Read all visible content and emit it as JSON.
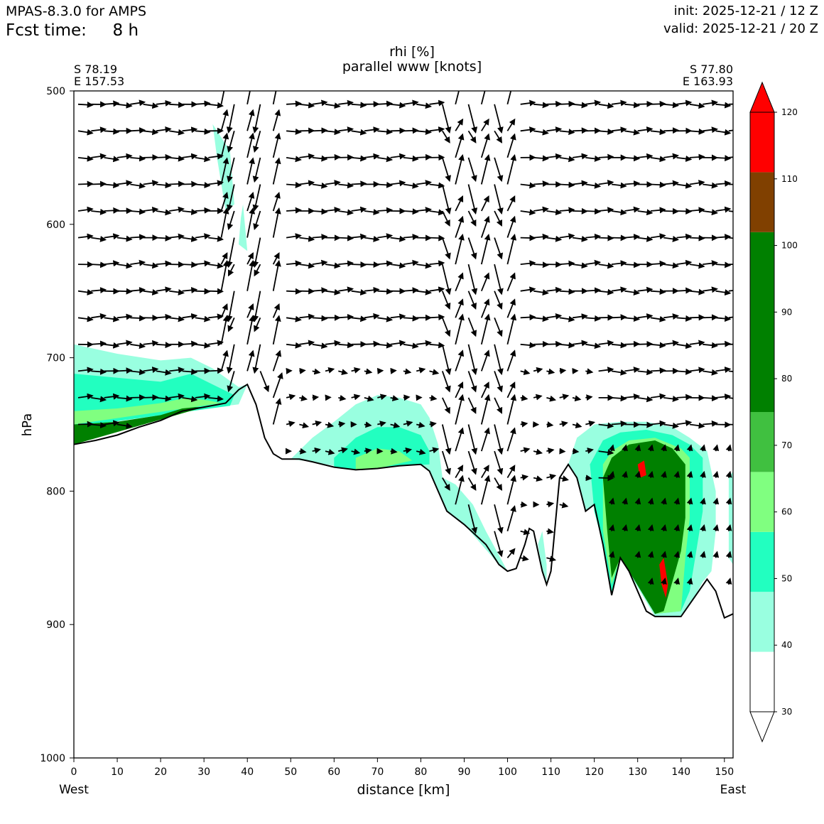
{
  "header": {
    "model": "MPAS-8.3.0 for AMPS",
    "fcst_label": "Fcst time:",
    "fcst_value": "8 h",
    "init": "init: 2025-12-21 / 12 Z",
    "valid": "valid: 2025-12-21 / 20 Z"
  },
  "chart_data": {
    "type": "cross-section",
    "title": "rhi [%]",
    "subtitle": "parallel www [knots]",
    "xlabel": "distance [km]",
    "ylabel": "hPa",
    "xlim": [
      0,
      152
    ],
    "ylim": [
      1000,
      500
    ],
    "xticks": [
      0,
      10,
      20,
      30,
      40,
      50,
      60,
      70,
      80,
      90,
      100,
      110,
      120,
      130,
      140,
      150
    ],
    "yticks": [
      500,
      600,
      700,
      800,
      900,
      1000
    ],
    "left_label": "West",
    "right_label": "East",
    "start_point": [
      "S 78.19",
      "E 157.53"
    ],
    "end_point": [
      "S 77.80",
      "E 163.93"
    ],
    "colorbar": {
      "levels": [
        30,
        40,
        50,
        60,
        70,
        80,
        90,
        100,
        110,
        120
      ],
      "tick_labels": [
        "30",
        "40",
        "50",
        "60",
        "70",
        "80",
        "90",
        "100",
        "110",
        "120"
      ],
      "bands": [
        {
          "from": 30,
          "to": 39,
          "color": "#ffffff"
        },
        {
          "from": 39,
          "to": 48,
          "color": "#99ffe0"
        },
        {
          "from": 48,
          "to": 57,
          "color": "#22ffc0"
        },
        {
          "from": 57,
          "to": 66,
          "color": "#80ff80"
        },
        {
          "from": 66,
          "to": 75,
          "color": "#40c040"
        },
        {
          "from": 75,
          "to": 102,
          "color": "#008000"
        },
        {
          "from": 102,
          "to": 111,
          "color": "#804000"
        },
        {
          "from": 111,
          "to": 120,
          "color": "#ff0000"
        }
      ]
    },
    "terrain_pressure": [
      [
        0,
        765
      ],
      [
        5,
        762
      ],
      [
        10,
        758
      ],
      [
        15,
        752
      ],
      [
        20,
        747
      ],
      [
        25,
        740
      ],
      [
        30,
        737
      ],
      [
        35,
        734
      ],
      [
        38,
        724
      ],
      [
        40,
        720
      ],
      [
        42,
        735
      ],
      [
        44,
        760
      ],
      [
        46,
        772
      ],
      [
        48,
        776
      ],
      [
        52,
        776
      ],
      [
        55,
        778
      ],
      [
        60,
        782
      ],
      [
        65,
        784
      ],
      [
        70,
        783
      ],
      [
        75,
        781
      ],
      [
        80,
        780
      ],
      [
        82,
        785
      ],
      [
        84,
        800
      ],
      [
        86,
        815
      ],
      [
        90,
        825
      ],
      [
        95,
        840
      ],
      [
        98,
        855
      ],
      [
        100,
        860
      ],
      [
        102,
        858
      ],
      [
        104,
        840
      ],
      [
        105,
        828
      ],
      [
        106,
        830
      ],
      [
        108,
        860
      ],
      [
        109,
        870
      ],
      [
        110,
        860
      ],
      [
        112,
        790
      ],
      [
        114,
        780
      ],
      [
        116,
        790
      ],
      [
        118,
        815
      ],
      [
        120,
        810
      ],
      [
        122,
        840
      ],
      [
        124,
        878
      ],
      [
        126,
        850
      ],
      [
        128,
        860
      ],
      [
        132,
        890
      ],
      [
        134,
        894
      ],
      [
        140,
        894
      ],
      [
        143,
        880
      ],
      [
        146,
        866
      ],
      [
        148,
        875
      ],
      [
        150,
        895
      ],
      [
        152,
        892
      ]
    ],
    "rh_regions": [
      {
        "level": 40,
        "outline": [
          [
            0,
            690
          ],
          [
            10,
            697
          ],
          [
            20,
            702
          ],
          [
            27,
            700
          ],
          [
            32,
            708
          ],
          [
            38,
            722
          ],
          [
            40,
            720
          ],
          [
            38,
            735
          ],
          [
            0,
            750
          ]
        ]
      },
      {
        "level": 40,
        "outline": [
          [
            32,
            525
          ],
          [
            36,
            545
          ],
          [
            37,
            585
          ],
          [
            35,
            590
          ],
          [
            33,
            550
          ]
        ]
      },
      {
        "level": 40,
        "outline": [
          [
            39,
            585
          ],
          [
            40,
            620
          ],
          [
            38,
            615
          ],
          [
            38.5,
            595
          ]
        ]
      },
      {
        "level": 40,
        "outline": [
          [
            55,
            760
          ],
          [
            60,
            748
          ],
          [
            65,
            735
          ],
          [
            70,
            728
          ],
          [
            75,
            730
          ],
          [
            80,
            735
          ],
          [
            82,
            745
          ],
          [
            84,
            765
          ],
          [
            85,
            790
          ],
          [
            88,
            795
          ],
          [
            92,
            810
          ],
          [
            95,
            830
          ],
          [
            100,
            860
          ],
          [
            98,
            855
          ],
          [
            90,
            825
          ],
          [
            86,
            815
          ],
          [
            84,
            800
          ],
          [
            82,
            785
          ],
          [
            80,
            780
          ],
          [
            65,
            784
          ],
          [
            55,
            778
          ],
          [
            50,
            776
          ]
        ]
      },
      {
        "level": 40,
        "outline": [
          [
            114,
            780
          ],
          [
            116,
            760
          ],
          [
            120,
            750
          ],
          [
            126,
            748
          ],
          [
            132,
            748
          ],
          [
            138,
            752
          ],
          [
            142,
            760
          ],
          [
            146,
            770
          ],
          [
            148,
            800
          ],
          [
            148,
            830
          ],
          [
            147,
            860
          ],
          [
            145,
            868
          ],
          [
            143,
            880
          ],
          [
            140,
            894
          ],
          [
            134,
            894
          ],
          [
            126,
            850
          ],
          [
            124,
            878
          ],
          [
            122,
            840
          ],
          [
            120,
            810
          ],
          [
            118,
            815
          ],
          [
            116,
            790
          ]
        ]
      },
      {
        "level": 40,
        "outline": [
          [
            107,
            840
          ],
          [
            108,
            830
          ],
          [
            109,
            855
          ],
          [
            109,
            870
          ],
          [
            108,
            860
          ]
        ]
      },
      {
        "level": 40,
        "outline": [
          [
            151,
            790
          ],
          [
            152,
            785
          ],
          [
            152,
            855
          ],
          [
            151,
            850
          ]
        ]
      },
      {
        "level": 50,
        "outline": [
          [
            0,
            712
          ],
          [
            10,
            715
          ],
          [
            20,
            718
          ],
          [
            27,
            712
          ],
          [
            32,
            720
          ],
          [
            37,
            728
          ],
          [
            36,
            736
          ],
          [
            0,
            752
          ]
        ]
      },
      {
        "level": 50,
        "outline": [
          [
            60,
            775
          ],
          [
            65,
            760
          ],
          [
            70,
            752
          ],
          [
            75,
            752
          ],
          [
            80,
            758
          ],
          [
            82,
            770
          ],
          [
            82,
            780
          ],
          [
            75,
            781
          ],
          [
            65,
            784
          ],
          [
            60,
            782
          ]
        ]
      },
      {
        "level": 50,
        "outline": [
          [
            119,
            780
          ],
          [
            122,
            762
          ],
          [
            126,
            756
          ],
          [
            132,
            754
          ],
          [
            138,
            758
          ],
          [
            142,
            765
          ],
          [
            145,
            775
          ],
          [
            145,
            815
          ],
          [
            143,
            855
          ],
          [
            142,
            875
          ],
          [
            140,
            890
          ],
          [
            134,
            892
          ],
          [
            128,
            860
          ],
          [
            126,
            850
          ],
          [
            124,
            876
          ],
          [
            122,
            840
          ],
          [
            120,
            815
          ]
        ]
      },
      {
        "level": 60,
        "outline": [
          [
            0,
            740
          ],
          [
            10,
            738
          ],
          [
            20,
            734
          ],
          [
            26,
            730
          ],
          [
            31,
            732
          ],
          [
            34,
            734
          ],
          [
            0,
            750
          ]
        ]
      },
      {
        "level": 60,
        "outline": [
          [
            65,
            775
          ],
          [
            70,
            768
          ],
          [
            75,
            770
          ],
          [
            78,
            777
          ],
          [
            70,
            783
          ],
          [
            65,
            784
          ]
        ]
      },
      {
        "level": 60,
        "outline": [
          [
            122,
            780
          ],
          [
            124,
            770
          ],
          [
            128,
            762
          ],
          [
            134,
            760
          ],
          [
            140,
            768
          ],
          [
            142,
            775
          ],
          [
            142,
            820
          ],
          [
            141,
            850
          ],
          [
            140,
            890
          ],
          [
            134,
            892
          ],
          [
            128,
            860
          ],
          [
            126,
            850
          ],
          [
            124,
            870
          ],
          [
            122,
            830
          ]
        ]
      },
      {
        "level": 80,
        "outline": [
          [
            0,
            750
          ],
          [
            10,
            748
          ],
          [
            20,
            743
          ],
          [
            25,
            738
          ],
          [
            28,
            737
          ],
          [
            30,
            737
          ],
          [
            0,
            765
          ]
        ]
      },
      {
        "level": 80,
        "outline": [
          [
            122,
            790
          ],
          [
            124,
            775
          ],
          [
            128,
            765
          ],
          [
            134,
            762
          ],
          [
            138,
            768
          ],
          [
            141,
            780
          ],
          [
            141,
            820
          ],
          [
            140,
            845
          ],
          [
            138,
            868
          ],
          [
            136,
            890
          ],
          [
            134,
            892
          ],
          [
            128,
            860
          ],
          [
            126,
            850
          ],
          [
            124,
            865
          ],
          [
            123,
            830
          ]
        ]
      },
      {
        "level": 100,
        "outline": [
          [
            128,
            790
          ],
          [
            130,
            770
          ],
          [
            134,
            770
          ],
          [
            136,
            780
          ],
          [
            138,
            800
          ],
          [
            137,
            830
          ],
          [
            136,
            845
          ],
          [
            137,
            870
          ],
          [
            136,
            888
          ],
          [
            133,
            880
          ],
          [
            131,
            860
          ],
          [
            129,
            840
          ],
          [
            128,
            815
          ]
        ]
      },
      {
        "level": 110,
        "outline": [
          [
            130,
            780
          ],
          [
            131.5,
            777
          ],
          [
            132,
            788
          ],
          [
            130.5,
            790
          ]
        ]
      },
      {
        "level": 110,
        "outline": [
          [
            135,
            855
          ],
          [
            136,
            850
          ],
          [
            137,
            870
          ],
          [
            136.5,
            880
          ],
          [
            135.5,
            870
          ]
        ]
      }
    ],
    "wind_rows_hpa": [
      510,
      530,
      550,
      570,
      590,
      610,
      630,
      650,
      670,
      690,
      710,
      730,
      750,
      770,
      790,
      810,
      830,
      850,
      870
    ],
    "wind_columns_km": [
      0,
      3,
      6,
      9,
      12,
      15,
      18,
      21,
      24,
      27,
      30,
      33,
      36,
      39,
      42,
      45,
      48,
      51,
      54,
      57,
      60,
      63,
      66,
      69,
      72,
      75,
      78,
      81,
      84,
      87,
      90,
      93,
      96,
      99,
      102,
      105,
      108,
      111,
      114,
      117,
      120,
      123,
      126,
      129,
      132,
      135,
      138,
      141,
      144,
      147,
      150
    ],
    "wind_description": "Arrows mostly eastward along the section with strong vertical motions near 33–47 km and 82–100 km."
  }
}
